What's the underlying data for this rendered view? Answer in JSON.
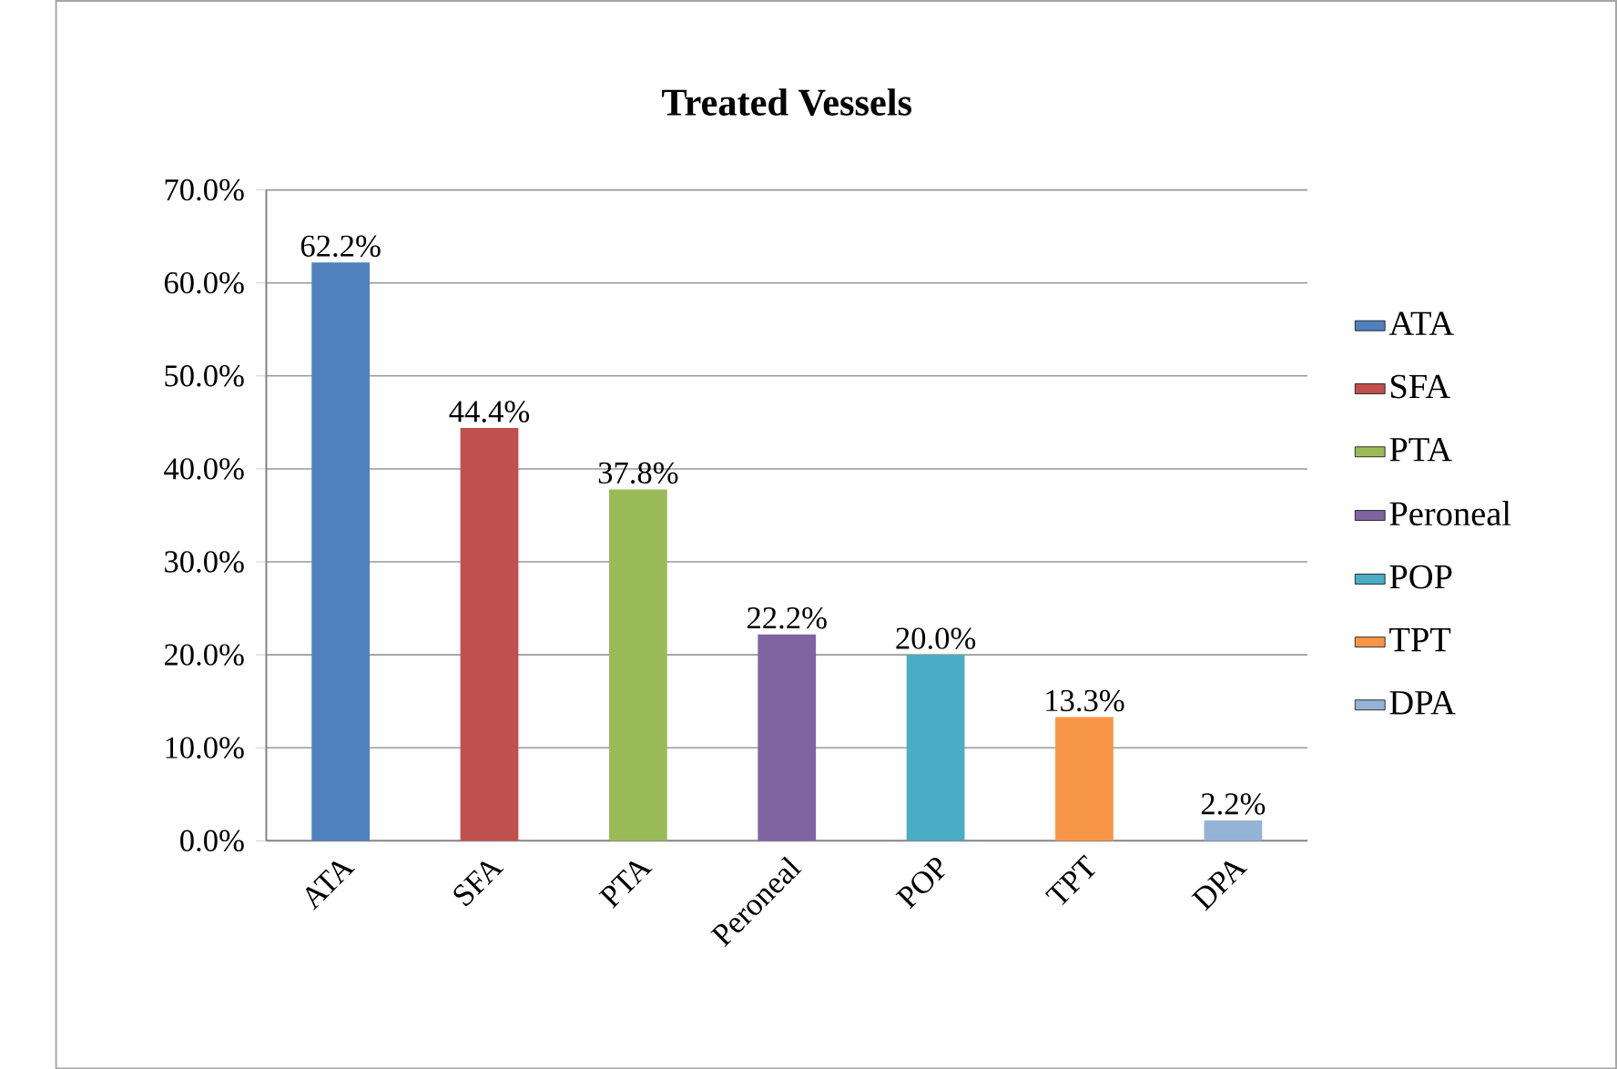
{
  "chart_data": {
    "type": "bar",
    "title": "Treated Vessels",
    "categories": [
      "ATA",
      "SFA",
      "PTA",
      "Peroneal",
      "POP",
      "TPT",
      "DPA"
    ],
    "series": [
      {
        "name": "ATA",
        "color": "#4f81bd",
        "values": [
          62.2,
          null,
          null,
          null,
          null,
          null,
          null
        ],
        "value_labels": [
          "62.2%",
          null,
          null,
          null,
          null,
          null,
          null
        ]
      },
      {
        "name": "SFA",
        "color": "#c0504d",
        "values": [
          null,
          44.4,
          null,
          null,
          null,
          null,
          null
        ],
        "value_labels": [
          null,
          "44.4%",
          null,
          null,
          null,
          null,
          null
        ]
      },
      {
        "name": "PTA",
        "color": "#9bbb59",
        "values": [
          null,
          null,
          37.8,
          null,
          null,
          null,
          null
        ],
        "value_labels": [
          null,
          null,
          "37.8%",
          null,
          null,
          null,
          null
        ]
      },
      {
        "name": "Peroneal",
        "color": "#8064a2",
        "values": [
          null,
          null,
          null,
          22.2,
          null,
          null,
          null
        ],
        "value_labels": [
          null,
          null,
          null,
          "22.2%",
          null,
          null,
          null
        ]
      },
      {
        "name": "POP",
        "color": "#4bacc6",
        "values": [
          null,
          null,
          null,
          null,
          20.0,
          null,
          null
        ],
        "value_labels": [
          null,
          null,
          null,
          null,
          "20.0%",
          null,
          null
        ]
      },
      {
        "name": "TPT",
        "color": "#f79646",
        "values": [
          null,
          null,
          null,
          null,
          null,
          13.3,
          null
        ],
        "value_labels": [
          null,
          null,
          null,
          null,
          null,
          "13.3%",
          null
        ]
      },
      {
        "name": "DPA",
        "color": "#95b3d7",
        "values": [
          null,
          null,
          null,
          null,
          null,
          null,
          2.2
        ],
        "value_labels": [
          null,
          null,
          null,
          null,
          null,
          null,
          "2.2%"
        ]
      }
    ],
    "ylim": [
      0,
      70
    ],
    "yticks": [
      {
        "value": 0,
        "label": "0.0%"
      },
      {
        "value": 10,
        "label": "10.0%"
      },
      {
        "value": 20,
        "label": "20.0%"
      },
      {
        "value": 30,
        "label": "30.0%"
      },
      {
        "value": 40,
        "label": "40.0%"
      },
      {
        "value": 50,
        "label": "50.0%"
      },
      {
        "value": 60,
        "label": "60.0%"
      },
      {
        "value": 70,
        "label": "70.0%"
      }
    ],
    "grid": "y",
    "legend": "right"
  }
}
